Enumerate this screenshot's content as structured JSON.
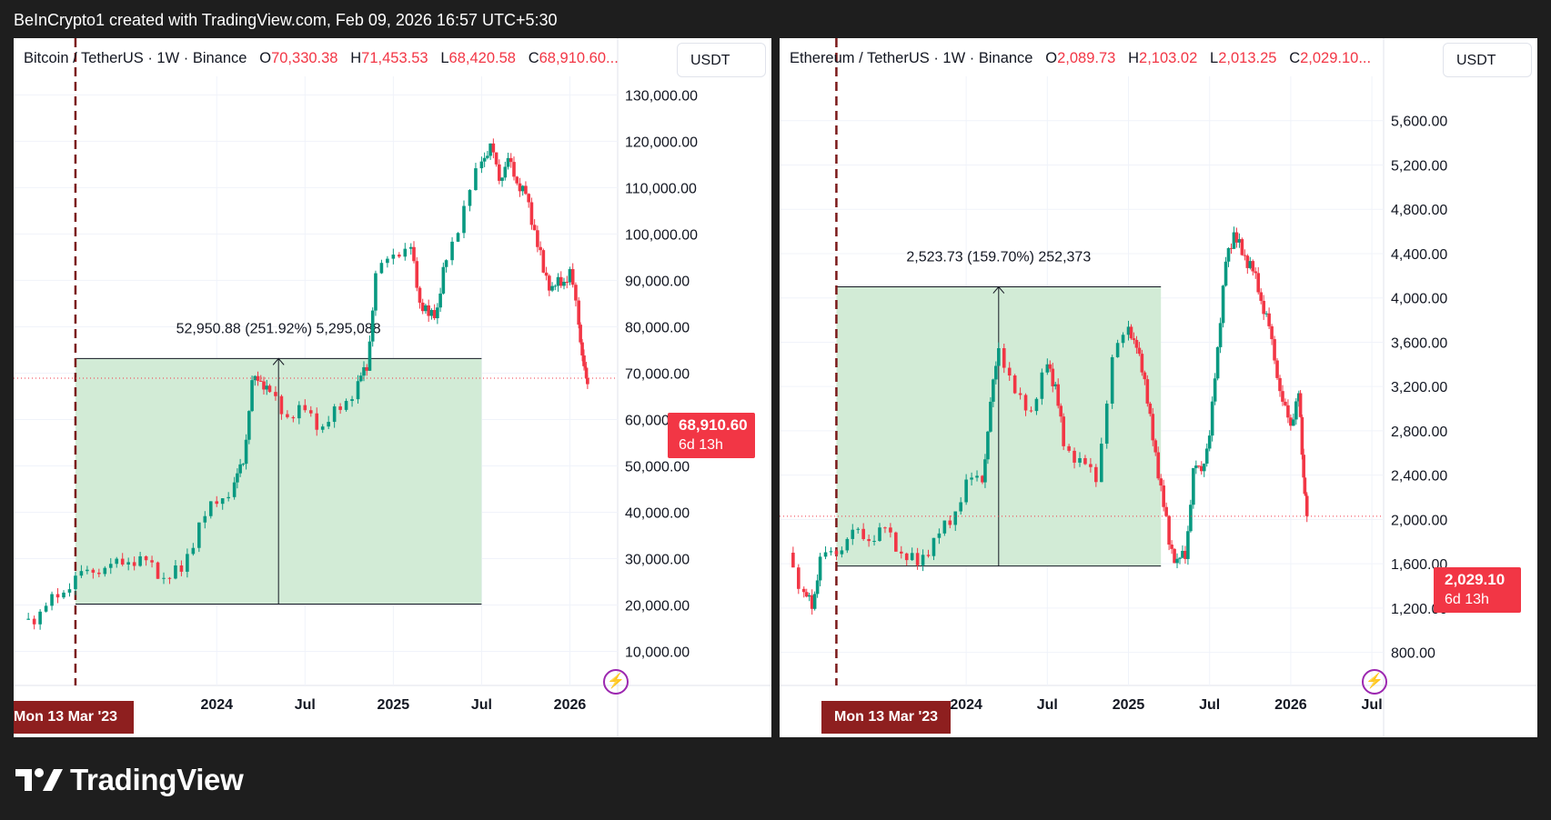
{
  "header": {
    "text": "BeInCrypto1 created with TradingView.com, Feb 09, 2026 16:57 UTC+5:30"
  },
  "brand": {
    "name": "TradingView"
  },
  "colors": {
    "up": "#089981",
    "down": "#f23645",
    "box_fill": "#d2ebd6",
    "marker_line": "#7b1a1a",
    "date_pill": "#8e1f1f",
    "bolt": "#9c27b0"
  },
  "panels": [
    {
      "id": "btc",
      "legend": {
        "symbol": "Bitcoin / TetherUS · 1W · Binance",
        "o_label": "O",
        "o": "70,330.38",
        "h_label": "H",
        "h": "71,453.53",
        "l_label": "L",
        "l": "68,420.58",
        "c_label": "C",
        "c": "68,910.60..."
      },
      "currency": "USDT",
      "price_tag": {
        "value": "68,910.60",
        "countdown": "6d 13h"
      },
      "measure_label": "52,950.88 (251.92%) 5,295,088",
      "date_marker": "Mon 13 Mar '23",
      "date_marker_prefix": "Mon 13 Mar '23"
    },
    {
      "id": "eth",
      "legend": {
        "symbol": "Ethereum / TetherUS · 1W · Binance",
        "o_label": "O",
        "o": "2,089.73",
        "h_label": "H",
        "h": "2,103.02",
        "l_label": "L",
        "l": "2,013.25",
        "c_label": "C",
        "c": "2,029.10..."
      },
      "currency": "USDT",
      "price_tag": {
        "value": "2,029.10",
        "countdown": "6d 13h"
      },
      "measure_label": "2,523.73 (159.70%) 252,373",
      "date_marker": "Mon 13 Mar '23"
    }
  ],
  "chart_data": [
    {
      "type": "candlestick",
      "title": "Bitcoin / TetherUS · 1W · Binance",
      "x_axis": {
        "labels": [
          "2024",
          "Jul",
          "2025",
          "Jul",
          "2026"
        ],
        "label_dates": [
          2024.0,
          2024.5,
          2025.0,
          2025.5,
          2026.0
        ],
        "range": [
          2022.85,
          2026.25
        ]
      },
      "y_axis": {
        "ticks": [
          "10,000.00",
          "20,000.00",
          "30,000.00",
          "40,000.00",
          "50,000.00",
          "60,000.00",
          "70,000.00",
          "80,000.00",
          "90,000.00",
          "100,000.00",
          "110,000.00",
          "120,000.00",
          "130,000.00"
        ],
        "tick_values": [
          10000,
          20000,
          30000,
          40000,
          50000,
          60000,
          70000,
          80000,
          90000,
          100000,
          110000,
          120000,
          130000
        ],
        "range": [
          5000,
          134000
        ]
      },
      "last_price": 68910.6,
      "marker_date": 2023.2,
      "measure": {
        "x_start": 2023.2,
        "x_end": 2025.5,
        "low": 20200,
        "high": 73150
      },
      "series": [
        {
          "x": [
            2022.9,
            2023.0,
            2023.1,
            2023.2,
            2023.3,
            2023.4,
            2023.5,
            2023.6,
            2023.7,
            2023.8,
            2023.9,
            2024.0,
            2024.1,
            2024.15,
            2024.2,
            2024.25,
            2024.3,
            2024.4,
            2024.5,
            2024.6,
            2024.7,
            2024.8,
            2024.85,
            2024.9,
            2025.0,
            2025.1,
            2025.15,
            2025.2,
            2025.25,
            2025.3,
            2025.4,
            2025.5,
            2025.55,
            2025.6,
            2025.65,
            2025.7,
            2025.75,
            2025.8,
            2025.85,
            2025.9,
            2025.95,
            2026.0,
            2026.05,
            2026.08,
            2026.1
          ],
          "close": [
            16800,
            17500,
            23000,
            24800,
            28500,
            27500,
            30300,
            29000,
            26000,
            27500,
            37000,
            43000,
            45000,
            52000,
            67000,
            69500,
            65000,
            61000,
            62000,
            58000,
            63000,
            67000,
            72000,
            90000,
            97000,
            96000,
            86000,
            82000,
            84000,
            95000,
            105000,
            117000,
            118000,
            113000,
            115000,
            112000,
            108000,
            101000,
            92000,
            88000,
            90000,
            91000,
            82000,
            70000,
            68910
          ]
        }
      ]
    },
    {
      "type": "candlestick",
      "title": "Ethereum / TetherUS · 1W · Binance",
      "x_axis": {
        "labels": [
          "2024",
          "Jul",
          "2025",
          "Jul",
          "2026",
          "Jul"
        ],
        "label_dates": [
          2024.0,
          2024.5,
          2025.0,
          2025.5,
          2026.0,
          2026.5
        ],
        "range": [
          2022.85,
          2026.55
        ]
      },
      "y_axis": {
        "ticks": [
          "800.00",
          "1,200.00",
          "1,600.00",
          "2,000.00",
          "2,400.00",
          "2,800.00",
          "3,200.00",
          "3,600.00",
          "4,000.00",
          "4,400.00",
          "4,800.00",
          "5,200.00",
          "5,600.00"
        ],
        "tick_values": [
          800,
          1200,
          1600,
          2000,
          2400,
          2800,
          3200,
          3600,
          4000,
          4400,
          4800,
          5200,
          5600
        ],
        "range": [
          600,
          6000
        ]
      },
      "last_price": 2029.1,
      "marker_date": 2023.2,
      "measure": {
        "x_start": 2023.2,
        "x_end": 2025.2,
        "low": 1580,
        "high": 4100
      },
      "series": [
        {
          "x": [
            2022.9,
            2023.0,
            2023.05,
            2023.1,
            2023.2,
            2023.3,
            2023.4,
            2023.5,
            2023.6,
            2023.7,
            2023.8,
            2023.9,
            2024.0,
            2024.1,
            2024.15,
            2024.2,
            2024.3,
            2024.4,
            2024.5,
            2024.55,
            2024.6,
            2024.7,
            2024.8,
            2024.9,
            2025.0,
            2025.05,
            2025.1,
            2025.15,
            2025.2,
            2025.25,
            2025.3,
            2025.35,
            2025.4,
            2025.45,
            2025.5,
            2025.55,
            2025.6,
            2025.65,
            2025.7,
            2025.75,
            2025.8,
            2025.85,
            2025.9,
            2025.95,
            2026.0,
            2026.05,
            2026.08,
            2026.1
          ],
          "close": [
            1700,
            1300,
            1250,
            1600,
            1750,
            1850,
            1850,
            1900,
            1700,
            1600,
            1800,
            2000,
            2300,
            2400,
            3000,
            3600,
            3100,
            3000,
            3400,
            3200,
            2700,
            2500,
            2400,
            3400,
            3800,
            3500,
            3300,
            2700,
            2300,
            1800,
            1600,
            1700,
            2400,
            2500,
            2700,
            3600,
            4300,
            4600,
            4400,
            4300,
            4100,
            3800,
            3500,
            3000,
            2900,
            3100,
            2400,
            2029
          ]
        }
      ]
    }
  ]
}
